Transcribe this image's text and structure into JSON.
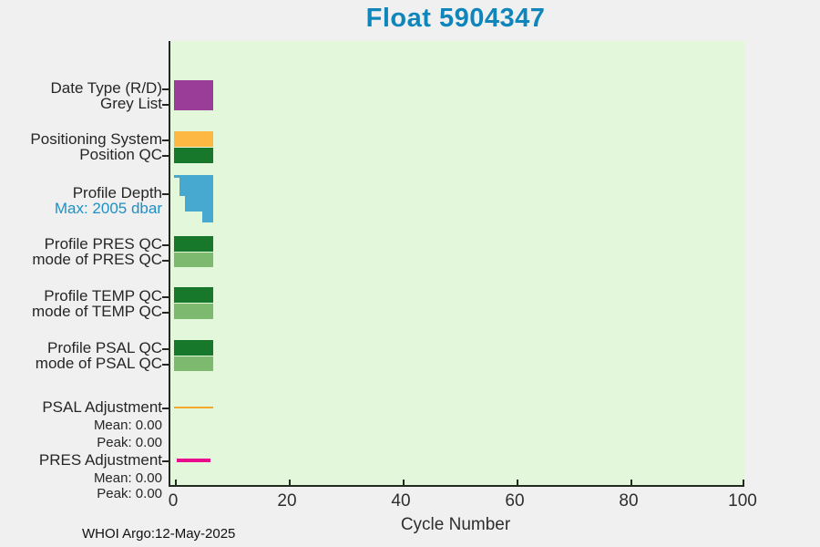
{
  "title": "Float 5904347",
  "footer": "WHOI Argo:12-May-2025",
  "colors": {
    "purple": "#9a3d98",
    "orange": "#fdb843",
    "dark_green": "#17772a",
    "light_green": "#7dba70",
    "blue": "#47a9cf",
    "magenta": "#ea0b8c",
    "orange_line": "#f5a72e",
    "title_blue": "#0e86bb",
    "annotation_blue": "#1e90c6",
    "plot_background": "#e3f7da",
    "page_background": "#f0f0f0"
  },
  "chart_data": {
    "type": "bar",
    "orientation": "horizontal rows, one stacked status chart per metric",
    "title": "Float 5904347",
    "x_axis": {
      "label": "Cycle Number",
      "range": [
        0,
        100
      ],
      "ticks": [
        0,
        20,
        40,
        60,
        80,
        100
      ],
      "tick_labels": [
        "0",
        "20",
        "40",
        "60",
        "80",
        "100"
      ]
    },
    "cycles_with_data": [
      1,
      7
    ],
    "rows": [
      {
        "id": "date_type_grey_list",
        "label_lines": [
          "Date Type (R/D)",
          "Grey List"
        ],
        "bar": {
          "color": "purple",
          "span": [
            0,
            7
          ]
        }
      },
      {
        "id": "positioning",
        "label_lines": [
          "Positioning System",
          "Position QC"
        ],
        "bars": [
          {
            "name": "positioning-system",
            "color": "orange",
            "span": [
              0,
              7
            ]
          },
          {
            "name": "position-qc",
            "color": "dark_green",
            "span": [
              0,
              7
            ]
          }
        ]
      },
      {
        "id": "profile_depth",
        "label_lines": [
          "Profile Depth",
          "Max: 2005 dbar"
        ],
        "max_dbar": 2005,
        "depth_dbar_by_cycle": [
          100,
          900,
          1550,
          1550,
          1550,
          2005,
          2005
        ],
        "bar_color": "blue"
      },
      {
        "id": "pres_qc",
        "label_lines": [
          "Profile PRES QC",
          "mode of PRES QC"
        ],
        "bars": [
          {
            "name": "profile-pres-qc",
            "color": "dark_green",
            "span": [
              0,
              7
            ]
          },
          {
            "name": "mode-of-pres-qc",
            "color": "light_green",
            "span": [
              0,
              7
            ]
          }
        ]
      },
      {
        "id": "temp_qc",
        "label_lines": [
          "Profile TEMP QC",
          "mode of TEMP QC"
        ],
        "bars": [
          {
            "name": "profile-temp-qc",
            "color": "dark_green",
            "span": [
              0,
              7
            ]
          },
          {
            "name": "mode-of-temp-qc",
            "color": "light_green",
            "span": [
              0,
              7
            ]
          }
        ]
      },
      {
        "id": "psal_qc",
        "label_lines": [
          "Profile PSAL QC",
          "mode of PSAL QC"
        ],
        "bars": [
          {
            "name": "profile-psal-qc",
            "color": "dark_green",
            "span": [
              0,
              7
            ]
          },
          {
            "name": "mode-of-psal-qc",
            "color": "light_green",
            "span": [
              0,
              7
            ]
          }
        ]
      },
      {
        "id": "psal_adjustment",
        "label_lines": [
          "PSAL Adjustment",
          "Mean: 0.00",
          "Peak: 0.00"
        ],
        "mean": 0.0,
        "peak": 0.0,
        "line": {
          "color": "orange_line",
          "span": [
            0,
            7
          ]
        }
      },
      {
        "id": "pres_adjustment",
        "label_lines": [
          "PRES Adjustment",
          "Mean: 0.00",
          "Peak: 0.00"
        ],
        "mean": 0.0,
        "peak": 0.0,
        "line": {
          "color": "magenta",
          "span": [
            0.5,
            6.5
          ]
        }
      }
    ]
  }
}
